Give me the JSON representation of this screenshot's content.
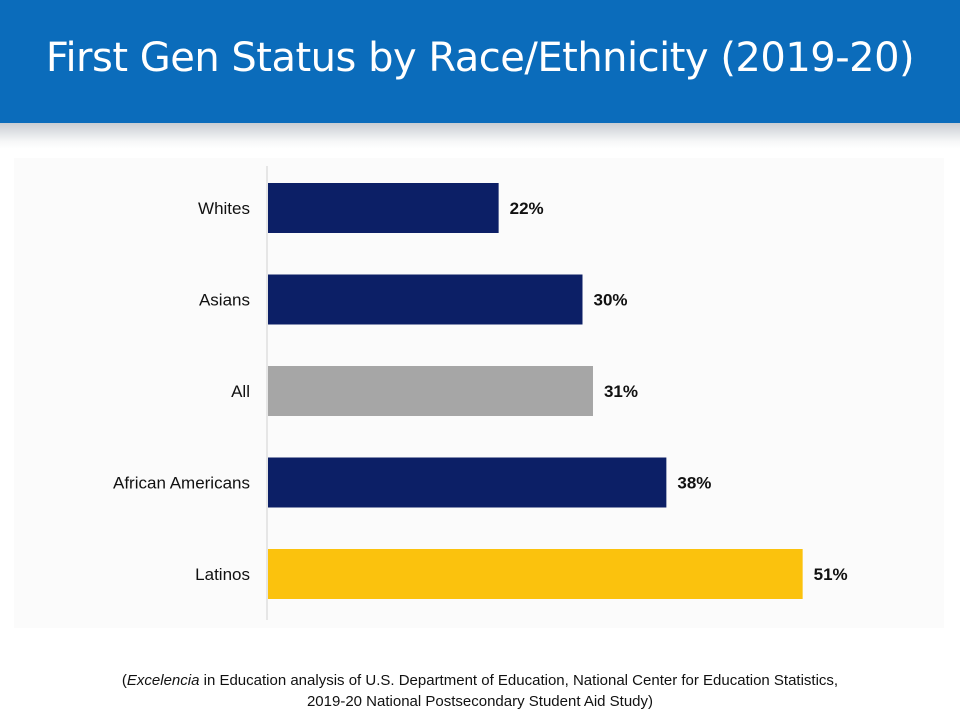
{
  "header": {
    "title": "First Gen Status by Race/Ethnicity (2019-20)"
  },
  "chart_data": {
    "type": "bar",
    "orientation": "horizontal",
    "categories": [
      "Whites",
      "Asians",
      "All",
      "African Americans",
      "Latinos"
    ],
    "values": [
      22,
      30,
      31,
      38,
      51
    ],
    "value_labels": [
      "22%",
      "30%",
      "31%",
      "38%",
      "51%"
    ],
    "colors": [
      "#0c1f66",
      "#0c1f66",
      "#a6a6a6",
      "#0c1f66",
      "#fbc20d"
    ],
    "title": "",
    "xlabel": "",
    "ylabel": "",
    "xlim": [
      0,
      60
    ],
    "grid": false
  },
  "caption": {
    "emphasis": "Excelencia",
    "line1_rest": " in Education analysis of U.S. Department of Education, National Center for Education Statistics,",
    "line2": "2019-20 National Postsecondary Student Aid Study)"
  }
}
